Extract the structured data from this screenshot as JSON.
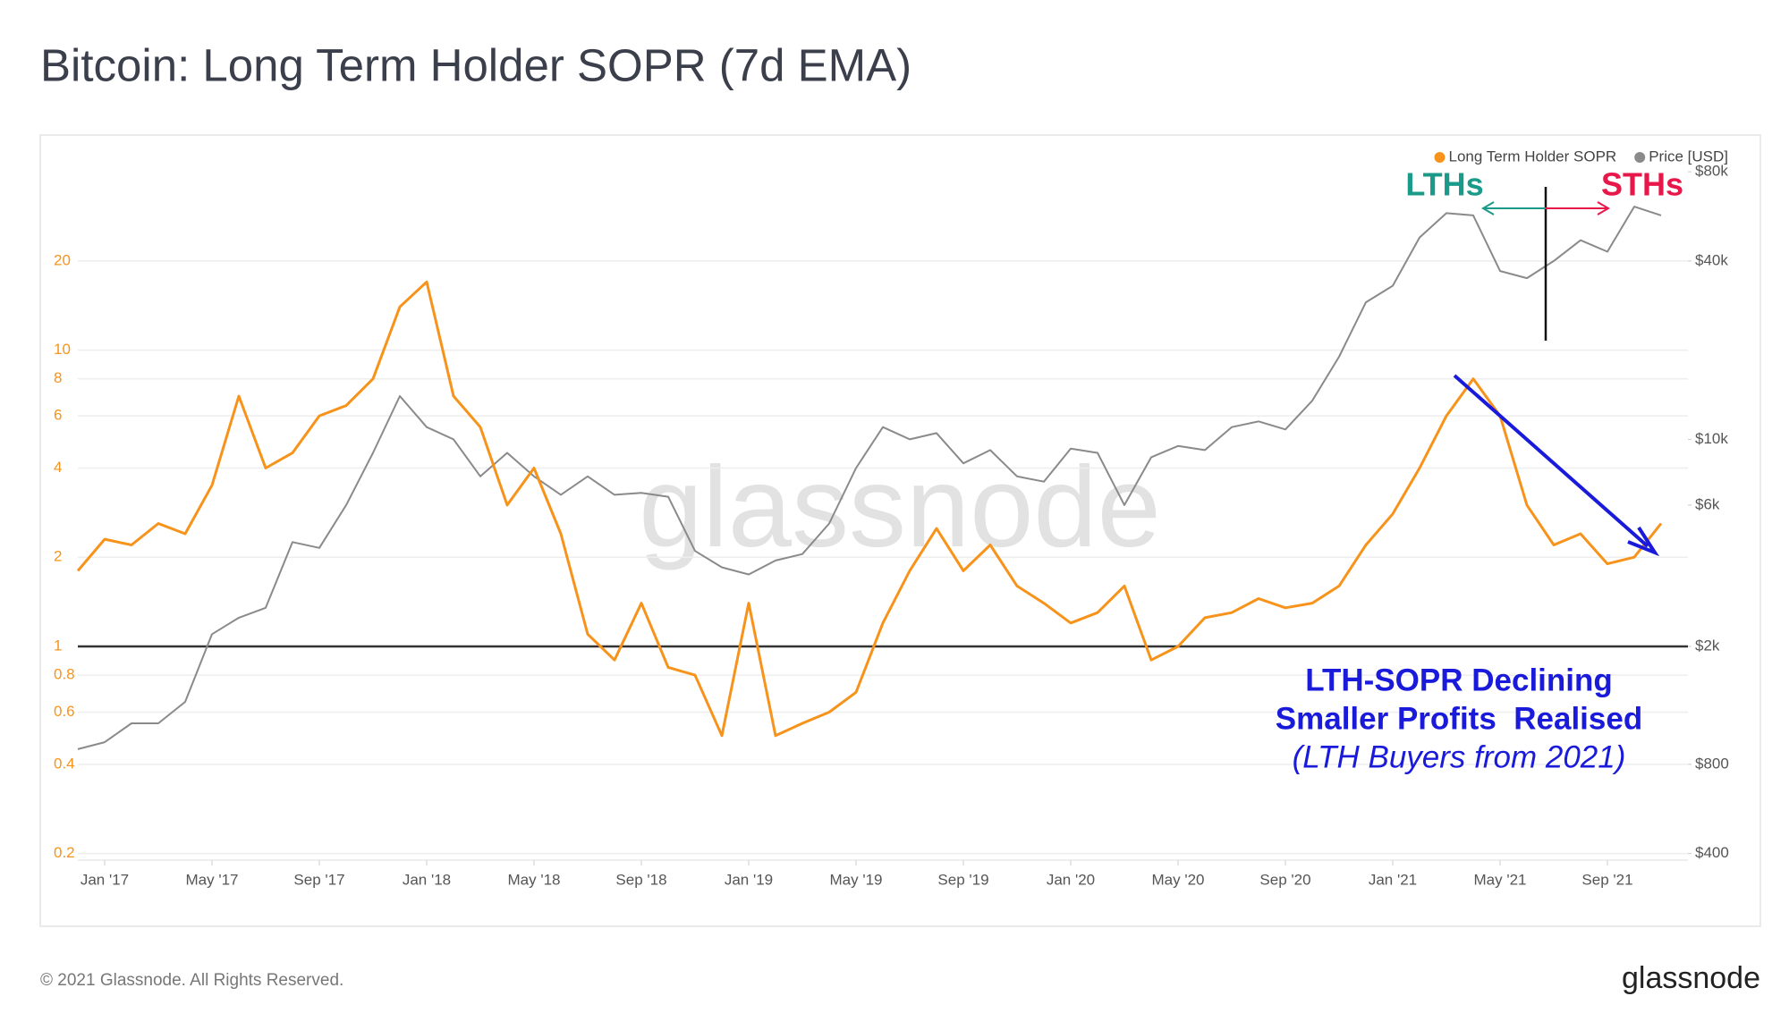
{
  "chart_data": {
    "type": "line",
    "title": "Bitcoin: Long Term Holder SOPR (7d EMA)",
    "legend": "top-right",
    "x": [
      "2016-12",
      "2017-01",
      "2017-02",
      "2017-03",
      "2017-04",
      "2017-05",
      "2017-06",
      "2017-07",
      "2017-08",
      "2017-09",
      "2017-10",
      "2017-11",
      "2017-12",
      "2018-01",
      "2018-02",
      "2018-03",
      "2018-04",
      "2018-05",
      "2018-06",
      "2018-07",
      "2018-08",
      "2018-09",
      "2018-10",
      "2018-11",
      "2018-12",
      "2019-01",
      "2019-02",
      "2019-03",
      "2019-04",
      "2019-05",
      "2019-06",
      "2019-07",
      "2019-08",
      "2019-09",
      "2019-10",
      "2019-11",
      "2019-12",
      "2020-01",
      "2020-02",
      "2020-03",
      "2020-04",
      "2020-05",
      "2020-06",
      "2020-07",
      "2020-08",
      "2020-09",
      "2020-10",
      "2020-11",
      "2020-12",
      "2021-01",
      "2021-02",
      "2021-03",
      "2021-04",
      "2021-05",
      "2021-06",
      "2021-07",
      "2021-08",
      "2021-09",
      "2021-10",
      "2021-11"
    ],
    "xlim": [
      "2016-12",
      "2021-12"
    ],
    "xticks": [
      {
        "value": "2017-01",
        "label": "Jan '17"
      },
      {
        "value": "2017-05",
        "label": "May '17"
      },
      {
        "value": "2017-09",
        "label": "Sep '17"
      },
      {
        "value": "2018-01",
        "label": "Jan '18"
      },
      {
        "value": "2018-05",
        "label": "May '18"
      },
      {
        "value": "2018-09",
        "label": "Sep '18"
      },
      {
        "value": "2019-01",
        "label": "Jan '19"
      },
      {
        "value": "2019-05",
        "label": "May '19"
      },
      {
        "value": "2019-09",
        "label": "Sep '19"
      },
      {
        "value": "2020-01",
        "label": "Jan '20"
      },
      {
        "value": "2020-05",
        "label": "May '20"
      },
      {
        "value": "2020-09",
        "label": "Sep '20"
      },
      {
        "value": "2021-01",
        "label": "Jan '21"
      },
      {
        "value": "2021-05",
        "label": "May '21"
      },
      {
        "value": "2021-09",
        "label": "Sep '21"
      }
    ],
    "ylog": true,
    "ylim": [
      0.19,
      50
    ],
    "yticks": [
      0.2,
      0.4,
      0.6,
      0.8,
      1,
      2,
      4,
      6,
      8,
      10,
      20
    ],
    "y2log": true,
    "y2lim": [
      380,
      100000
    ],
    "y2ticks": [
      {
        "value": 400,
        "label": "$400"
      },
      {
        "value": 800,
        "label": "$800"
      },
      {
        "value": 2000,
        "label": "$2k"
      },
      {
        "value": 6000,
        "label": "$6k"
      },
      {
        "value": 10000,
        "label": "$10k"
      },
      {
        "value": 40000,
        "label": "$40k"
      },
      {
        "value": 80000,
        "label": "$80k"
      }
    ],
    "grid": true,
    "hline": 1,
    "series": [
      {
        "name": "Long Term Holder SOPR",
        "color": "#f7931a",
        "values": [
          1.8,
          2.3,
          2.2,
          2.6,
          2.4,
          3.5,
          7,
          4,
          4.5,
          6,
          6.5,
          8,
          14,
          17,
          7,
          5.5,
          3,
          4,
          2.4,
          1.1,
          0.9,
          1.4,
          0.85,
          0.8,
          0.5,
          1.4,
          0.5,
          0.55,
          0.6,
          0.7,
          1.2,
          1.8,
          2.5,
          1.8,
          2.2,
          1.6,
          1.4,
          1.2,
          1.3,
          1.6,
          0.9,
          1.0,
          1.25,
          1.3,
          1.45,
          1.35,
          1.4,
          1.6,
          2.2,
          2.8,
          4,
          6,
          8,
          6,
          3,
          2.2,
          2.4,
          1.9,
          2,
          2.6
        ]
      },
      {
        "name": "Price [USD]",
        "color": "#8a8a8a",
        "axis": "y2",
        "values": [
          900,
          950,
          1100,
          1100,
          1300,
          2200,
          2500,
          2700,
          4500,
          4300,
          6000,
          9000,
          14000,
          11000,
          10000,
          7500,
          9000,
          7500,
          6500,
          7500,
          6500,
          6600,
          6400,
          4200,
          3700,
          3500,
          3900,
          4100,
          5200,
          8000,
          11000,
          10000,
          10500,
          8300,
          9200,
          7500,
          7200,
          9300,
          9000,
          6000,
          8700,
          9500,
          9200,
          11000,
          11500,
          10800,
          13500,
          19000,
          29000,
          33000,
          48000,
          58000,
          57000,
          37000,
          35000,
          40000,
          47000,
          43000,
          61000,
          57000
        ]
      }
    ],
    "annotations": [
      "LTHs",
      "STHs",
      "LTH-SOPR Declining",
      "Smaller Profits  Realised",
      "(LTH Buyers from 2021)"
    ],
    "watermark": "glassnode",
    "footer": "© 2021 Glassnode. All Rights Reserved.",
    "logo": "glassnode"
  }
}
